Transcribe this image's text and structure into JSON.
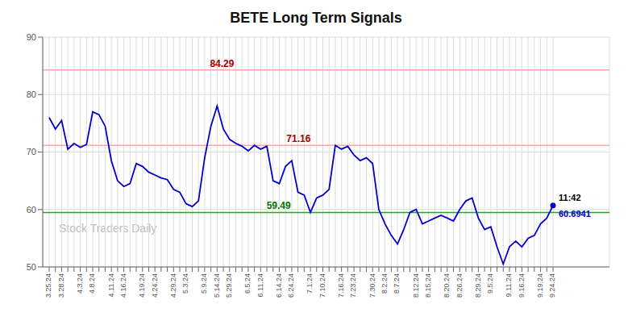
{
  "chart_data": {
    "type": "line",
    "title": "BETE Long Term Signals",
    "categories": [
      "3.25.24",
      null,
      "3.28.24",
      null,
      null,
      "4.3.24",
      null,
      "4.8.24",
      null,
      null,
      "4.11.24",
      null,
      "4.16.24",
      null,
      null,
      "4.19.24",
      null,
      "4.24.24",
      null,
      null,
      "4.29.24",
      null,
      "5.3.24",
      null,
      null,
      "5.9.24",
      null,
      "5.14.24",
      null,
      "5.29.24",
      null,
      null,
      "6.5.24",
      null,
      "6.11.24",
      null,
      null,
      "6.14.24",
      null,
      "6.24.24",
      null,
      null,
      "7.1.24",
      null,
      "7.10.24",
      null,
      null,
      "7.16.24",
      null,
      "7.23.24",
      null,
      null,
      "7.30.24",
      null,
      "8.2.24",
      null,
      "8.7.24",
      null,
      null,
      "8.12.24",
      null,
      "8.15.24",
      null,
      null,
      "8.20.24",
      null,
      "8.26.24",
      null,
      null,
      "8.29.24",
      null,
      "9.5.24",
      null,
      null,
      "9.11.24",
      null,
      "9.16.24",
      null,
      null,
      "9.19.24",
      null,
      "9.24.24"
    ],
    "values": [
      76.0,
      74.0,
      75.5,
      70.5,
      71.5,
      70.8,
      71.3,
      77.0,
      76.5,
      74.5,
      68.5,
      65.0,
      64.0,
      64.5,
      68.0,
      67.5,
      66.5,
      66.0,
      65.5,
      65.2,
      63.5,
      63.0,
      61.0,
      60.5,
      61.5,
      69.0,
      74.5,
      78.0,
      74.0,
      72.2,
      71.5,
      71.0,
      70.2,
      71.16,
      70.5,
      71.0,
      65.0,
      64.5,
      67.5,
      68.5,
      63.0,
      62.5,
      59.49,
      62.0,
      62.5,
      63.5,
      71.16,
      70.5,
      71.0,
      69.5,
      68.5,
      69.0,
      68.0,
      60.0,
      57.5,
      55.5,
      54.0,
      56.5,
      59.5,
      60.0,
      57.5,
      58.0,
      58.5,
      59.0,
      58.5,
      58.0,
      60.0,
      61.5,
      62.0,
      58.5,
      56.5,
      57.0,
      53.5,
      50.5,
      53.5,
      54.5,
      53.5,
      55.0,
      55.5,
      57.5,
      58.5,
      60.6941
    ],
    "color": "#0000cc",
    "ylim": [
      50,
      90
    ],
    "yticks": [
      50,
      60,
      70,
      80,
      90
    ],
    "grid": true,
    "reference_lines": [
      {
        "y": 84.29,
        "color": "#ffaaaa",
        "label": "84.29",
        "label_color": "#aa0000"
      },
      {
        "y": 71.16,
        "color": "#ffaaaa",
        "label": "71.16",
        "label_color": "#aa0000"
      },
      {
        "y": 59.49,
        "color": "#00bb00",
        "label": "59.49",
        "label_color": "#007700"
      }
    ],
    "last_point_labels": [
      {
        "text": "11:42",
        "color": "#000000"
      },
      {
        "text": "60.6941",
        "color": "#0000cc"
      }
    ],
    "watermark": {
      "text": "Stock Traders Daily",
      "color": "#bbbbbb"
    }
  }
}
